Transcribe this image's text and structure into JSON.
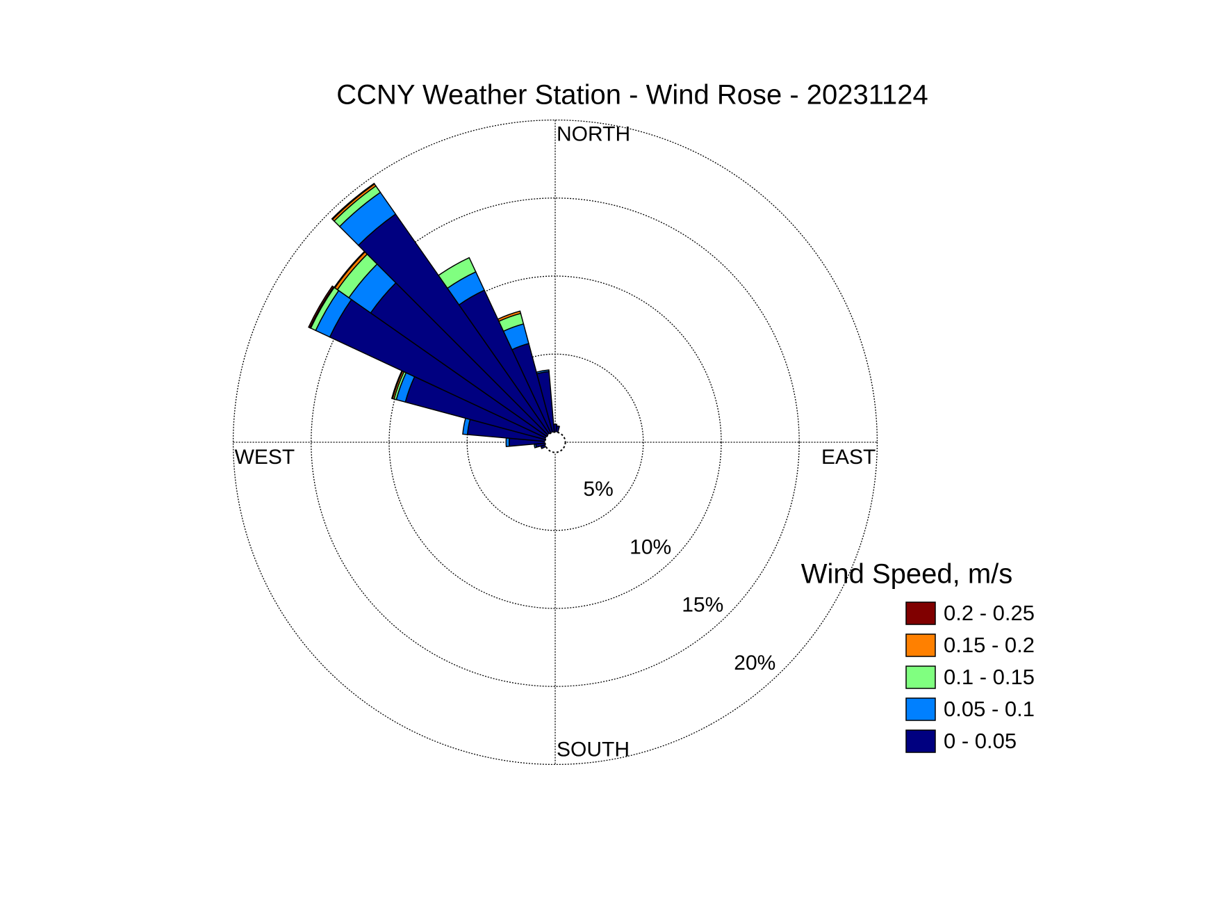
{
  "chart_data": {
    "type": "windrose",
    "title": "CCNY Weather Station - Wind Rose - 20231124",
    "legend_title": "Wind Speed, m/s",
    "direction_labels": [
      "NORTH",
      "EAST",
      "SOUTH",
      "WEST"
    ],
    "x": [
      0,
      10,
      250,
      260,
      270,
      280,
      290,
      300,
      310,
      320,
      330,
      340,
      350
    ],
    "sector_width": 10,
    "rlim": [
      0,
      20
    ],
    "rticks": [
      {
        "value": 5,
        "label": "5%"
      },
      {
        "value": 10,
        "label": "10%"
      },
      {
        "value": 15,
        "label": "15%"
      },
      {
        "value": 20,
        "label": "20%"
      }
    ],
    "grid": true,
    "series": [
      {
        "name": "0 - 0.05",
        "color": "#000080",
        "values": [
          0.5,
          0.4,
          0.3,
          0.6,
          2.3,
          5.0,
          9.3,
          15.3,
          13.8,
          17.2,
          10.1,
          5.9,
          3.9
        ]
      },
      {
        "name": "0.05 - 0.1",
        "color": "#0080ff",
        "values": [
          0,
          0,
          0,
          0.1,
          0.2,
          0.3,
          0.6,
          1.0,
          1.7,
          1.7,
          1.3,
          1.3,
          0.1
        ]
      },
      {
        "name": "0.1 - 0.15",
        "color": "#80ff80",
        "values": [
          0,
          0,
          0,
          0,
          0,
          0,
          0.15,
          0.35,
          0.9,
          0.5,
          1.0,
          0.7,
          0
        ]
      },
      {
        "name": "0.15 - 0.2",
        "color": "#ff8000",
        "values": [
          0,
          0,
          0,
          0,
          0,
          0,
          0.1,
          0.05,
          0.2,
          0.15,
          0,
          0.15,
          0
        ]
      },
      {
        "name": "0.2 - 0.25",
        "color": "#800000",
        "values": [
          0,
          0,
          0,
          0,
          0,
          0,
          0.05,
          0.1,
          0.05,
          0.05,
          0,
          0,
          0
        ]
      }
    ]
  }
}
